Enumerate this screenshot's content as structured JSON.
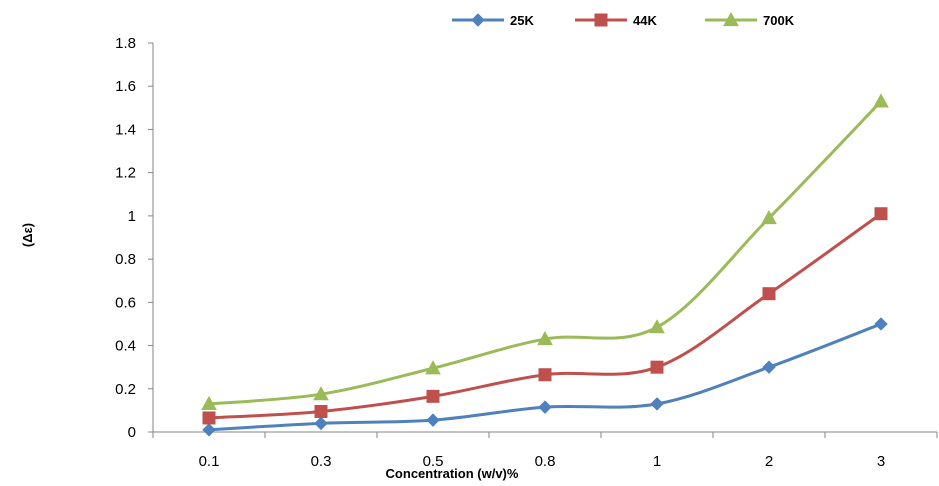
{
  "chart_data": {
    "type": "line",
    "title": "",
    "xlabel": "Concentration (w/v)%",
    "ylabel": "(Δε)",
    "categories": [
      "0.1",
      "0.3",
      "0.5",
      "0.8",
      "1",
      "2",
      "3"
    ],
    "ylim": [
      0,
      1.8
    ],
    "yticks": [
      "0",
      "0.2",
      "0.4",
      "0.6",
      "0.8",
      "1",
      "1.2",
      "1.4",
      "1.6",
      "1.8"
    ],
    "grid": false,
    "legend_position": "top",
    "smooth": true,
    "series": [
      {
        "name": "25K",
        "color": "#4f81bd",
        "marker": "diamond",
        "values": [
          0.01,
          0.04,
          0.055,
          0.115,
          0.13,
          0.3,
          0.5
        ]
      },
      {
        "name": "44K",
        "color": "#c0504d",
        "marker": "square",
        "values": [
          0.065,
          0.095,
          0.165,
          0.265,
          0.3,
          0.64,
          1.01
        ]
      },
      {
        "name": "700K",
        "color": "#9bbb59",
        "marker": "triangle",
        "values": [
          0.13,
          0.175,
          0.295,
          0.43,
          0.485,
          0.99,
          1.53
        ]
      }
    ]
  }
}
